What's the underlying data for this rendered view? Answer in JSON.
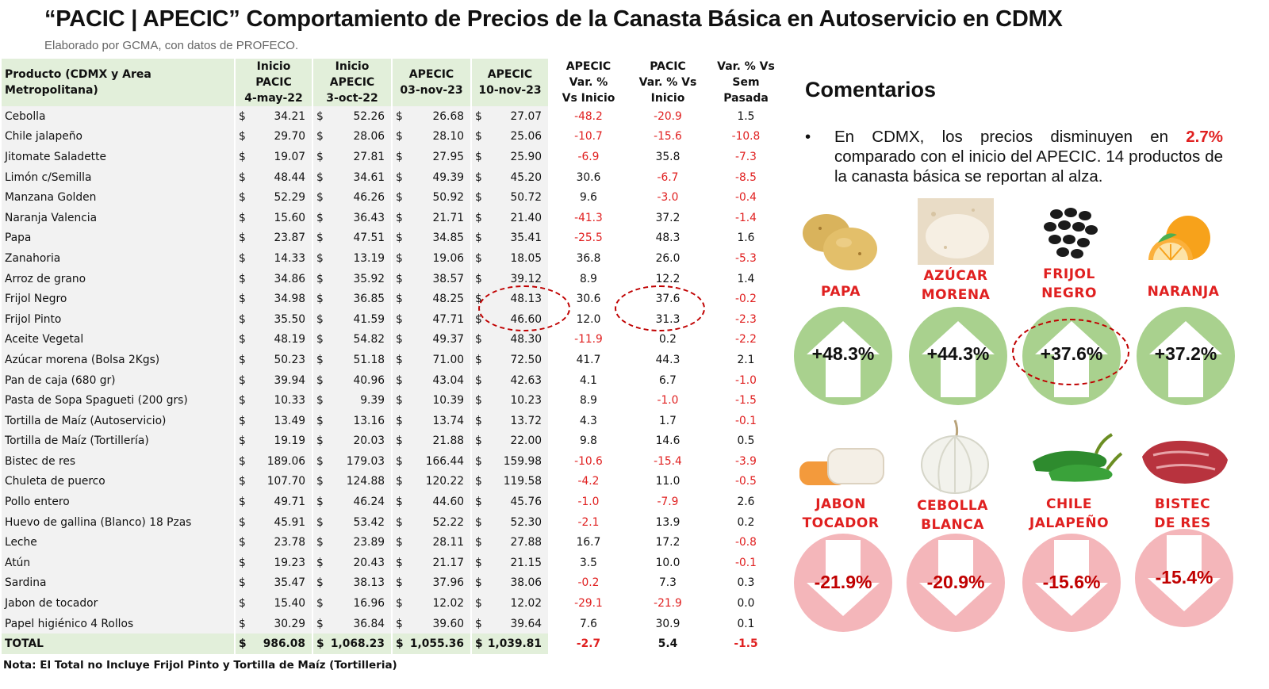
{
  "header": {
    "title": "“PACIC | APECIC” Comportamiento de Precios de la Canasta Básica en Autoservicio en CDMX",
    "subtitle": "Elaborado por GCMA, con datos de PROFECO."
  },
  "table": {
    "headers": {
      "product": "Producto (CDMX y Area Metropolitana)",
      "c1": [
        "Inicio",
        "PACIC",
        "4-may-22"
      ],
      "c2": [
        "Inicio",
        "APECIC",
        "3-oct-22"
      ],
      "c3": [
        "APECIC",
        "03-nov-23"
      ],
      "c4": [
        "APECIC",
        "10-nov-23"
      ],
      "c5": [
        "APECIC",
        "Var. %",
        "Vs  Inicio"
      ],
      "c6": [
        "PACIC",
        "Var. % Vs",
        "Inicio"
      ],
      "c7": [
        "Var. % Vs",
        "Sem Pasada"
      ]
    },
    "currency": "$",
    "rows": [
      {
        "p": "Cebolla",
        "v": [
          "34.21",
          "52.26",
          "26.68",
          "27.07"
        ],
        "a": "-48.2",
        "b": "-20.9",
        "c": "1.5"
      },
      {
        "p": "Chile jalapeño",
        "v": [
          "29.70",
          "28.06",
          "28.10",
          "25.06"
        ],
        "a": "-10.7",
        "b": "-15.6",
        "c": "-10.8"
      },
      {
        "p": "Jitomate Saladette",
        "v": [
          "19.07",
          "27.81",
          "27.95",
          "25.90"
        ],
        "a": "-6.9",
        "b": "35.8",
        "c": "-7.3"
      },
      {
        "p": "Limón c/Semilla",
        "v": [
          "48.44",
          "34.61",
          "49.39",
          "45.20"
        ],
        "a": "30.6",
        "b": "-6.7",
        "c": "-8.5"
      },
      {
        "p": "Manzana Golden",
        "v": [
          "52.29",
          "46.26",
          "50.92",
          "50.72"
        ],
        "a": "9.6",
        "b": "-3.0",
        "c": "-0.4"
      },
      {
        "p": "Naranja Valencia",
        "v": [
          "15.60",
          "36.43",
          "21.71",
          "21.40"
        ],
        "a": "-41.3",
        "b": "37.2",
        "c": "-1.4"
      },
      {
        "p": "Papa",
        "v": [
          "23.87",
          "47.51",
          "34.85",
          "35.41"
        ],
        "a": "-25.5",
        "b": "48.3",
        "c": "1.6"
      },
      {
        "p": "Zanahoria",
        "v": [
          "14.33",
          "13.19",
          "19.06",
          "18.05"
        ],
        "a": "36.8",
        "b": "26.0",
        "c": "-5.3"
      },
      {
        "p": "Arroz de grano",
        "v": [
          "34.86",
          "35.92",
          "38.57",
          "39.12"
        ],
        "a": "8.9",
        "b": "12.2",
        "c": "1.4"
      },
      {
        "p": "Frijol Negro",
        "v": [
          "34.98",
          "36.85",
          "48.25",
          "48.13"
        ],
        "a": "30.6",
        "b": "37.6",
        "c": "-0.2"
      },
      {
        "p": "Frijol Pinto",
        "v": [
          "35.50",
          "41.59",
          "47.71",
          "46.60"
        ],
        "a": "12.0",
        "b": "31.3",
        "c": "-2.3"
      },
      {
        "p": "Aceite Vegetal",
        "v": [
          "48.19",
          "54.82",
          "49.37",
          "48.30"
        ],
        "a": "-11.9",
        "b": "0.2",
        "c": "-2.2"
      },
      {
        "p": "Azúcar morena (Bolsa 2Kgs)",
        "v": [
          "50.23",
          "51.18",
          "71.00",
          "72.50"
        ],
        "a": "41.7",
        "b": "44.3",
        "c": "2.1"
      },
      {
        "p": "Pan de caja (680 gr)",
        "v": [
          "39.94",
          "40.96",
          "43.04",
          "42.63"
        ],
        "a": "4.1",
        "b": "6.7",
        "c": "-1.0"
      },
      {
        "p": "Pasta de Sopa Spagueti (200 grs)",
        "v": [
          "10.33",
          "9.39",
          "10.39",
          "10.23"
        ],
        "a": "8.9",
        "b": "-1.0",
        "c": "-1.5"
      },
      {
        "p": "Tortilla de Maíz (Autoservicio)",
        "v": [
          "13.49",
          "13.16",
          "13.74",
          "13.72"
        ],
        "a": "4.3",
        "b": "1.7",
        "c": "-0.1"
      },
      {
        "p": "Tortilla de Maíz (Tortillería)",
        "v": [
          "19.19",
          "20.03",
          "21.88",
          "22.00"
        ],
        "a": "9.8",
        "b": "14.6",
        "c": "0.5"
      },
      {
        "p": "Bistec de res",
        "v": [
          "189.06",
          "179.03",
          "166.44",
          "159.98"
        ],
        "a": "-10.6",
        "b": "-15.4",
        "c": "-3.9"
      },
      {
        "p": "Chuleta de puerco",
        "v": [
          "107.70",
          "124.88",
          "120.22",
          "119.58"
        ],
        "a": "-4.2",
        "b": "11.0",
        "c": "-0.5"
      },
      {
        "p": "Pollo entero",
        "v": [
          "49.71",
          "46.24",
          "44.60",
          "45.76"
        ],
        "a": "-1.0",
        "b": "-7.9",
        "c": "2.6"
      },
      {
        "p": "Huevo de gallina (Blanco) 18 Pzas",
        "v": [
          "45.91",
          "53.42",
          "52.22",
          "52.30"
        ],
        "a": "-2.1",
        "b": "13.9",
        "c": "0.2"
      },
      {
        "p": "Leche",
        "v": [
          "23.78",
          "23.89",
          "28.11",
          "27.88"
        ],
        "a": "16.7",
        "b": "17.2",
        "c": "-0.8"
      },
      {
        "p": "Atún",
        "v": [
          "19.23",
          "20.43",
          "21.17",
          "21.15"
        ],
        "a": "3.5",
        "b": "10.0",
        "c": "-0.1"
      },
      {
        "p": "Sardina",
        "v": [
          "35.47",
          "38.13",
          "37.96",
          "38.06"
        ],
        "a": "-0.2",
        "b": "7.3",
        "c": "0.3"
      },
      {
        "p": "Jabon de tocador",
        "v": [
          "15.40",
          "16.96",
          "12.02",
          "12.02"
        ],
        "a": "-29.1",
        "b": "-21.9",
        "c": "0.0"
      },
      {
        "p": "Papel higiénico 4 Rollos",
        "v": [
          "30.29",
          "36.84",
          "39.60",
          "39.64"
        ],
        "a": "7.6",
        "b": "30.9",
        "c": "0.1"
      }
    ],
    "total": {
      "p": "TOTAL",
      "v": [
        "986.08",
        "1,068.23",
        "1,055.36",
        "1,039.81"
      ],
      "a": "-2.7",
      "b": "5.4",
      "c": "-1.5"
    },
    "note": "Nota: El Total no Incluye Frijol Pinto y Tortilla de Maíz (Tortilleria)"
  },
  "comments": {
    "title": "Comentarios",
    "bullet_symbol": "•",
    "text_before": "En CDMX, los precios disminuyen en ",
    "highlight": "2.7%",
    "text_after": " comparado con el inicio del APECIC. 14 productos de la canasta básica se reportan al alza."
  },
  "products_up": [
    {
      "label1": "PAPA",
      "label2": "",
      "value": "+48.3%",
      "icon": "potato-image"
    },
    {
      "label1": "AZÚCAR",
      "label2": "MORENA",
      "value": "+44.3%",
      "icon": "brown-sugar-image"
    },
    {
      "label1": "FRIJOL",
      "label2": "NEGRO",
      "value": "+37.6%",
      "icon": "black-beans-image"
    },
    {
      "label1": "NARANJA",
      "label2": "",
      "value": "+37.2%",
      "icon": "orange-image"
    }
  ],
  "products_down": [
    {
      "label1": "JABON",
      "label2": "TOCADOR",
      "value": "-21.9%",
      "icon": "soap-image"
    },
    {
      "label1": "CEBOLLA",
      "label2": "BLANCA",
      "value": "-20.9%",
      "icon": "onion-image"
    },
    {
      "label1": "CHILE",
      "label2": "JALAPEÑO",
      "value": "-15.6%",
      "icon": "jalapeno-image"
    },
    {
      "label1": "BISTEC",
      "label2": "DE RES",
      "value": "-15.4%",
      "icon": "beef-steak-image"
    }
  ],
  "colors": {
    "header_green": "#e2efda",
    "row_gray": "#f2f2f2",
    "negative_red": "#e02020",
    "up_circle": "#a9d18e",
    "down_circle": "#f4b6ba",
    "label_red": "#e02020"
  }
}
